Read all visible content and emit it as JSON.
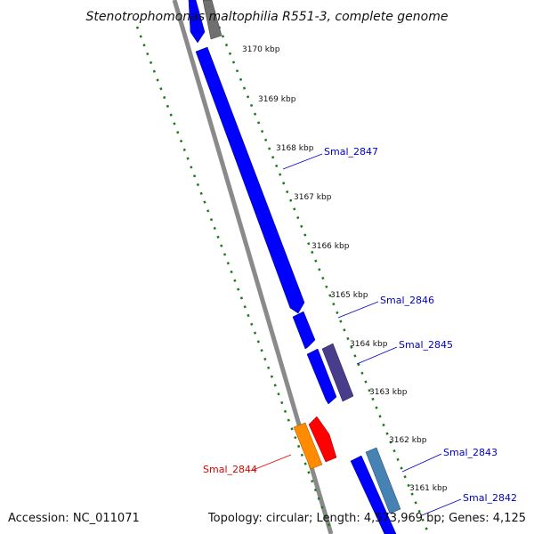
{
  "title": "Stenotrophomonas maltophilia R551-3, complete genome",
  "footer": {
    "accession": "Accession: NC_011071",
    "summary": "Topology: circular; Length: 4,573,969 bp; Genes: 4,125"
  },
  "colors": {
    "backbone": "#808080",
    "forward_gene": "#0000ff",
    "tick_green": "#1a7a1a",
    "label_blue": "#0000c8",
    "label_red": "#e00000"
  },
  "ticks": [
    {
      "label": "3170 kbp"
    },
    {
      "label": "3169 kbp"
    },
    {
      "label": "3168 kbp"
    },
    {
      "label": "3167 kbp"
    },
    {
      "label": "3166 kbp"
    },
    {
      "label": "3165 kbp"
    },
    {
      "label": "3164 kbp"
    },
    {
      "label": "3163 kbp"
    },
    {
      "label": "3162 kbp"
    },
    {
      "label": "3161 kbp"
    }
  ],
  "genes": [
    {
      "name": "Smal_2847"
    },
    {
      "name": "Smal_2846"
    },
    {
      "name": "Smal_2845"
    },
    {
      "name": "Smal_2844"
    },
    {
      "name": "Smal_2843"
    },
    {
      "name": "Smal_2842"
    }
  ]
}
